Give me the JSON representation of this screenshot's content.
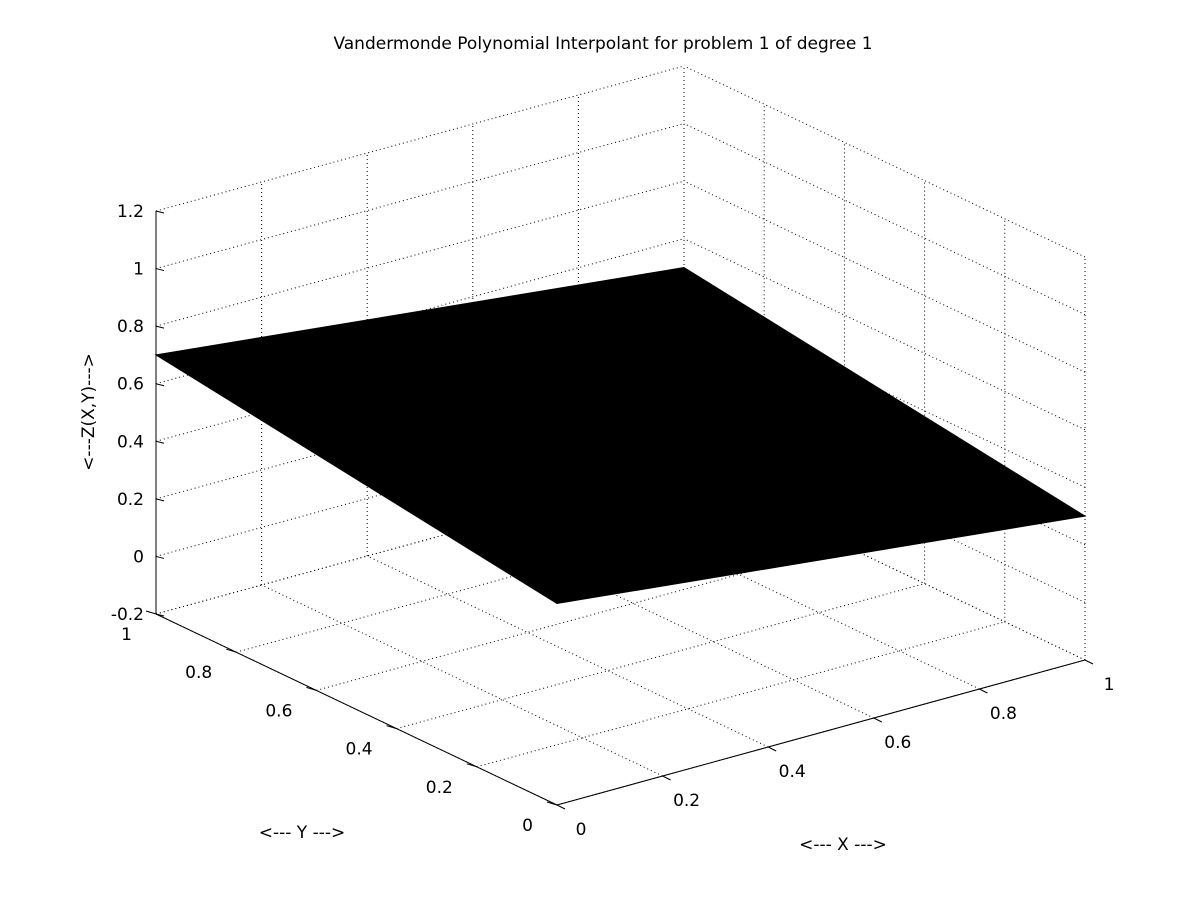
{
  "chart_data": {
    "type": "surface",
    "title": "Vandermonde Polynomial Interpolant for problem 1 of degree 1",
    "xlabel": "<--- X --->",
    "ylabel": "<--- Y --->",
    "zlabel": "<---Z(X,Y)--->",
    "xlim": [
      0,
      1
    ],
    "ylim": [
      0,
      1
    ],
    "zlim": [
      -0.2,
      1.2
    ],
    "xticks": [
      0,
      0.2,
      0.4,
      0.6,
      0.8,
      1
    ],
    "yticks": [
      0,
      0.2,
      0.4,
      0.6,
      0.8,
      1
    ],
    "zticks": [
      -0.2,
      0,
      0.2,
      0.4,
      0.6,
      0.8,
      1,
      1.2
    ],
    "xtick_labels": [
      "0",
      "0.2",
      "0.4",
      "0.6",
      "0.8",
      "1"
    ],
    "ytick_labels": [
      "0",
      "0.2",
      "0.4",
      "0.6",
      "0.8",
      "1"
    ],
    "ztick_labels": [
      "-0.2",
      "0",
      "0.2",
      "0.4",
      "0.6",
      "0.8",
      "1",
      "1.2"
    ],
    "grid": true,
    "surface_color": "#000000",
    "surface": [
      {
        "x": 0,
        "y": 1,
        "z": 0.7
      },
      {
        "x": 0,
        "y": 0,
        "z": 0.5
      },
      {
        "x": 1,
        "y": 0,
        "z": 0.3
      },
      {
        "x": 1,
        "y": 1,
        "z": 0.5
      }
    ]
  }
}
